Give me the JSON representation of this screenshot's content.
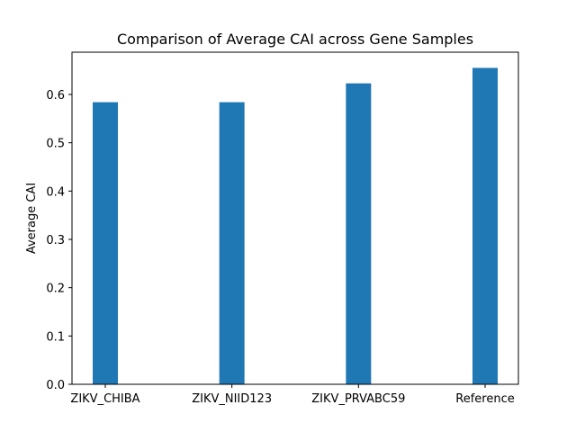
{
  "chart_data": {
    "type": "bar",
    "title": "Comparison of Average CAI across Gene Samples",
    "xlabel": "",
    "ylabel": "Average CAI",
    "categories": [
      "ZIKV_CHIBA",
      "ZIKV_NIID123",
      "ZIKV_PRVABC59",
      "Reference"
    ],
    "values": [
      0.584,
      0.584,
      0.623,
      0.655
    ],
    "ylim": [
      0,
      0.6875
    ],
    "yticks": [
      0.0,
      0.1,
      0.2,
      0.3,
      0.4,
      0.5,
      0.6
    ],
    "ytick_labels": [
      "0.0",
      "0.1",
      "0.2",
      "0.3",
      "0.4",
      "0.5",
      "0.6"
    ],
    "bar_color": "#1f77b4",
    "grid": false,
    "legend": "none"
  }
}
